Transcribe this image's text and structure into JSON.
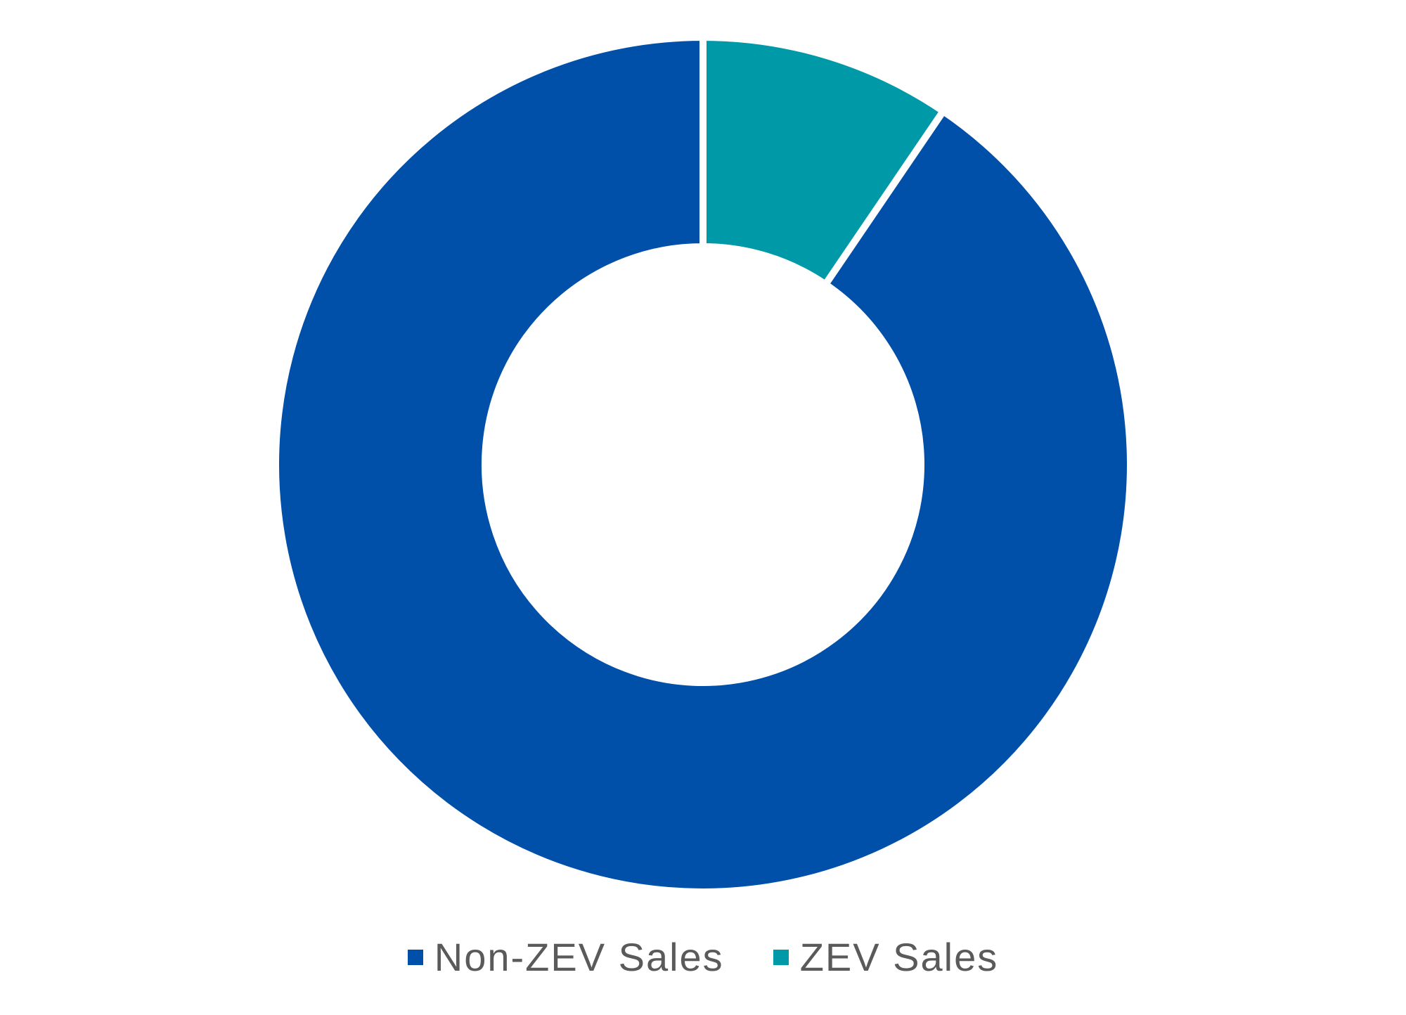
{
  "chart_data": {
    "type": "pie",
    "variant": "donut",
    "title": "",
    "slices": [
      {
        "label": "ZEV Sales",
        "value": 9.5,
        "color": "#0099a8"
      },
      {
        "label": "Non-ZEV Sales",
        "value": 90.5,
        "color": "#0050aa"
      }
    ],
    "legend": {
      "placement": "bottom",
      "order": [
        "Non-ZEV Sales",
        "ZEV Sales"
      ]
    },
    "data_labels": false
  }
}
